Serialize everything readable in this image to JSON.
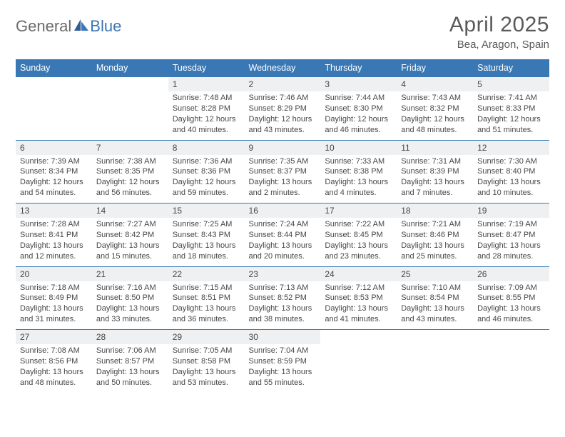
{
  "logo": {
    "part1": "General",
    "part2": "Blue"
  },
  "title": "April 2025",
  "location": "Bea, Aragon, Spain",
  "colors": {
    "header_bg": "#3a78b5",
    "header_text": "#ffffff",
    "daynum_bg": "#eef0f2",
    "text": "#474747",
    "rule": "#3a78b5",
    "logo_gray": "#6b6b6b",
    "logo_blue": "#3a78b5"
  },
  "weekdays": [
    "Sunday",
    "Monday",
    "Tuesday",
    "Wednesday",
    "Thursday",
    "Friday",
    "Saturday"
  ],
  "weeks": [
    [
      null,
      null,
      {
        "n": "1",
        "sr": "7:48 AM",
        "ss": "8:28 PM",
        "dl": "12 hours and 40 minutes."
      },
      {
        "n": "2",
        "sr": "7:46 AM",
        "ss": "8:29 PM",
        "dl": "12 hours and 43 minutes."
      },
      {
        "n": "3",
        "sr": "7:44 AM",
        "ss": "8:30 PM",
        "dl": "12 hours and 46 minutes."
      },
      {
        "n": "4",
        "sr": "7:43 AM",
        "ss": "8:32 PM",
        "dl": "12 hours and 48 minutes."
      },
      {
        "n": "5",
        "sr": "7:41 AM",
        "ss": "8:33 PM",
        "dl": "12 hours and 51 minutes."
      }
    ],
    [
      {
        "n": "6",
        "sr": "7:39 AM",
        "ss": "8:34 PM",
        "dl": "12 hours and 54 minutes."
      },
      {
        "n": "7",
        "sr": "7:38 AM",
        "ss": "8:35 PM",
        "dl": "12 hours and 56 minutes."
      },
      {
        "n": "8",
        "sr": "7:36 AM",
        "ss": "8:36 PM",
        "dl": "12 hours and 59 minutes."
      },
      {
        "n": "9",
        "sr": "7:35 AM",
        "ss": "8:37 PM",
        "dl": "13 hours and 2 minutes."
      },
      {
        "n": "10",
        "sr": "7:33 AM",
        "ss": "8:38 PM",
        "dl": "13 hours and 4 minutes."
      },
      {
        "n": "11",
        "sr": "7:31 AM",
        "ss": "8:39 PM",
        "dl": "13 hours and 7 minutes."
      },
      {
        "n": "12",
        "sr": "7:30 AM",
        "ss": "8:40 PM",
        "dl": "13 hours and 10 minutes."
      }
    ],
    [
      {
        "n": "13",
        "sr": "7:28 AM",
        "ss": "8:41 PM",
        "dl": "13 hours and 12 minutes."
      },
      {
        "n": "14",
        "sr": "7:27 AM",
        "ss": "8:42 PM",
        "dl": "13 hours and 15 minutes."
      },
      {
        "n": "15",
        "sr": "7:25 AM",
        "ss": "8:43 PM",
        "dl": "13 hours and 18 minutes."
      },
      {
        "n": "16",
        "sr": "7:24 AM",
        "ss": "8:44 PM",
        "dl": "13 hours and 20 minutes."
      },
      {
        "n": "17",
        "sr": "7:22 AM",
        "ss": "8:45 PM",
        "dl": "13 hours and 23 minutes."
      },
      {
        "n": "18",
        "sr": "7:21 AM",
        "ss": "8:46 PM",
        "dl": "13 hours and 25 minutes."
      },
      {
        "n": "19",
        "sr": "7:19 AM",
        "ss": "8:47 PM",
        "dl": "13 hours and 28 minutes."
      }
    ],
    [
      {
        "n": "20",
        "sr": "7:18 AM",
        "ss": "8:49 PM",
        "dl": "13 hours and 31 minutes."
      },
      {
        "n": "21",
        "sr": "7:16 AM",
        "ss": "8:50 PM",
        "dl": "13 hours and 33 minutes."
      },
      {
        "n": "22",
        "sr": "7:15 AM",
        "ss": "8:51 PM",
        "dl": "13 hours and 36 minutes."
      },
      {
        "n": "23",
        "sr": "7:13 AM",
        "ss": "8:52 PM",
        "dl": "13 hours and 38 minutes."
      },
      {
        "n": "24",
        "sr": "7:12 AM",
        "ss": "8:53 PM",
        "dl": "13 hours and 41 minutes."
      },
      {
        "n": "25",
        "sr": "7:10 AM",
        "ss": "8:54 PM",
        "dl": "13 hours and 43 minutes."
      },
      {
        "n": "26",
        "sr": "7:09 AM",
        "ss": "8:55 PM",
        "dl": "13 hours and 46 minutes."
      }
    ],
    [
      {
        "n": "27",
        "sr": "7:08 AM",
        "ss": "8:56 PM",
        "dl": "13 hours and 48 minutes."
      },
      {
        "n": "28",
        "sr": "7:06 AM",
        "ss": "8:57 PM",
        "dl": "13 hours and 50 minutes."
      },
      {
        "n": "29",
        "sr": "7:05 AM",
        "ss": "8:58 PM",
        "dl": "13 hours and 53 minutes."
      },
      {
        "n": "30",
        "sr": "7:04 AM",
        "ss": "8:59 PM",
        "dl": "13 hours and 55 minutes."
      },
      null,
      null,
      null
    ]
  ],
  "labels": {
    "sunrise": "Sunrise:",
    "sunset": "Sunset:",
    "daylight": "Daylight:"
  }
}
